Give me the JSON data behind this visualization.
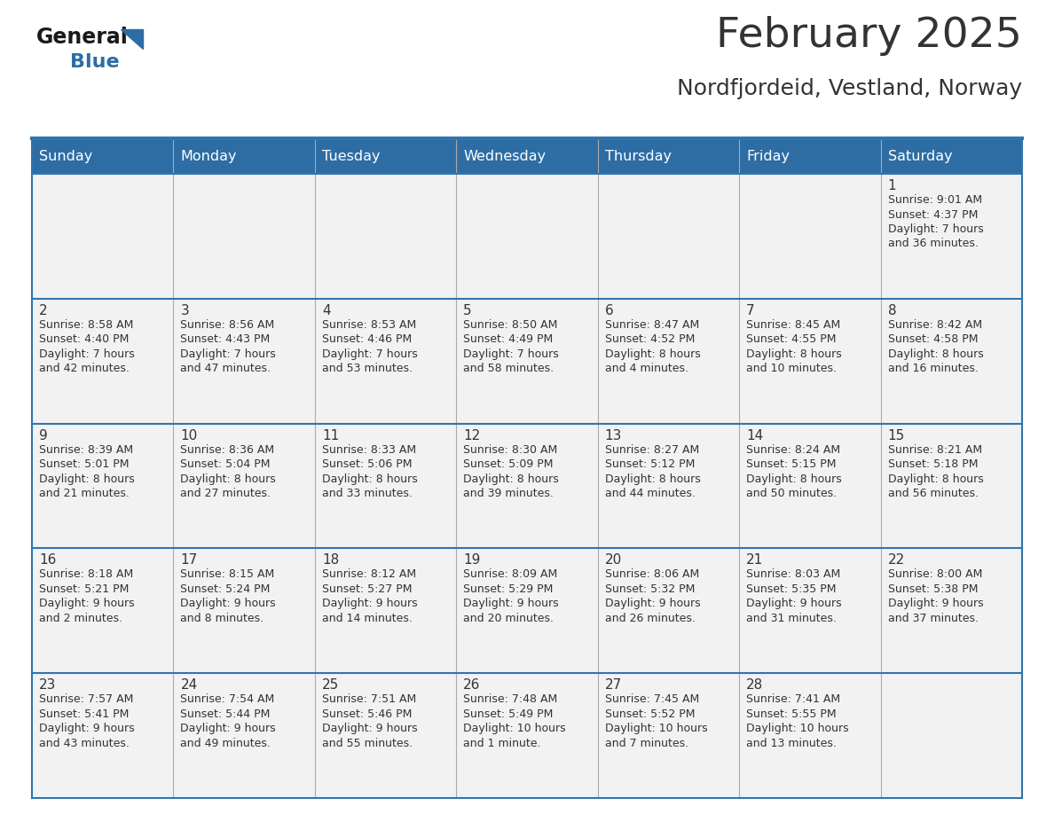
{
  "title": "February 2025",
  "subtitle": "Nordfjordeid, Vestland, Norway",
  "header_bg": "#2E6DA4",
  "header_text_color": "#FFFFFF",
  "cell_bg_light": "#F2F2F2",
  "cell_bg_white": "#FFFFFF",
  "border_color": "#2E75B0",
  "divider_color": "#AAAAAA",
  "text_color": "#333333",
  "days_of_week": [
    "Sunday",
    "Monday",
    "Tuesday",
    "Wednesday",
    "Thursday",
    "Friday",
    "Saturday"
  ],
  "weeks": [
    [
      {
        "day": "",
        "info": ""
      },
      {
        "day": "",
        "info": ""
      },
      {
        "day": "",
        "info": ""
      },
      {
        "day": "",
        "info": ""
      },
      {
        "day": "",
        "info": ""
      },
      {
        "day": "",
        "info": ""
      },
      {
        "day": "1",
        "info": "Sunrise: 9:01 AM\nSunset: 4:37 PM\nDaylight: 7 hours\nand 36 minutes."
      }
    ],
    [
      {
        "day": "2",
        "info": "Sunrise: 8:58 AM\nSunset: 4:40 PM\nDaylight: 7 hours\nand 42 minutes."
      },
      {
        "day": "3",
        "info": "Sunrise: 8:56 AM\nSunset: 4:43 PM\nDaylight: 7 hours\nand 47 minutes."
      },
      {
        "day": "4",
        "info": "Sunrise: 8:53 AM\nSunset: 4:46 PM\nDaylight: 7 hours\nand 53 minutes."
      },
      {
        "day": "5",
        "info": "Sunrise: 8:50 AM\nSunset: 4:49 PM\nDaylight: 7 hours\nand 58 minutes."
      },
      {
        "day": "6",
        "info": "Sunrise: 8:47 AM\nSunset: 4:52 PM\nDaylight: 8 hours\nand 4 minutes."
      },
      {
        "day": "7",
        "info": "Sunrise: 8:45 AM\nSunset: 4:55 PM\nDaylight: 8 hours\nand 10 minutes."
      },
      {
        "day": "8",
        "info": "Sunrise: 8:42 AM\nSunset: 4:58 PM\nDaylight: 8 hours\nand 16 minutes."
      }
    ],
    [
      {
        "day": "9",
        "info": "Sunrise: 8:39 AM\nSunset: 5:01 PM\nDaylight: 8 hours\nand 21 minutes."
      },
      {
        "day": "10",
        "info": "Sunrise: 8:36 AM\nSunset: 5:04 PM\nDaylight: 8 hours\nand 27 minutes."
      },
      {
        "day": "11",
        "info": "Sunrise: 8:33 AM\nSunset: 5:06 PM\nDaylight: 8 hours\nand 33 minutes."
      },
      {
        "day": "12",
        "info": "Sunrise: 8:30 AM\nSunset: 5:09 PM\nDaylight: 8 hours\nand 39 minutes."
      },
      {
        "day": "13",
        "info": "Sunrise: 8:27 AM\nSunset: 5:12 PM\nDaylight: 8 hours\nand 44 minutes."
      },
      {
        "day": "14",
        "info": "Sunrise: 8:24 AM\nSunset: 5:15 PM\nDaylight: 8 hours\nand 50 minutes."
      },
      {
        "day": "15",
        "info": "Sunrise: 8:21 AM\nSunset: 5:18 PM\nDaylight: 8 hours\nand 56 minutes."
      }
    ],
    [
      {
        "day": "16",
        "info": "Sunrise: 8:18 AM\nSunset: 5:21 PM\nDaylight: 9 hours\nand 2 minutes."
      },
      {
        "day": "17",
        "info": "Sunrise: 8:15 AM\nSunset: 5:24 PM\nDaylight: 9 hours\nand 8 minutes."
      },
      {
        "day": "18",
        "info": "Sunrise: 8:12 AM\nSunset: 5:27 PM\nDaylight: 9 hours\nand 14 minutes."
      },
      {
        "day": "19",
        "info": "Sunrise: 8:09 AM\nSunset: 5:29 PM\nDaylight: 9 hours\nand 20 minutes."
      },
      {
        "day": "20",
        "info": "Sunrise: 8:06 AM\nSunset: 5:32 PM\nDaylight: 9 hours\nand 26 minutes."
      },
      {
        "day": "21",
        "info": "Sunrise: 8:03 AM\nSunset: 5:35 PM\nDaylight: 9 hours\nand 31 minutes."
      },
      {
        "day": "22",
        "info": "Sunrise: 8:00 AM\nSunset: 5:38 PM\nDaylight: 9 hours\nand 37 minutes."
      }
    ],
    [
      {
        "day": "23",
        "info": "Sunrise: 7:57 AM\nSunset: 5:41 PM\nDaylight: 9 hours\nand 43 minutes."
      },
      {
        "day": "24",
        "info": "Sunrise: 7:54 AM\nSunset: 5:44 PM\nDaylight: 9 hours\nand 49 minutes."
      },
      {
        "day": "25",
        "info": "Sunrise: 7:51 AM\nSunset: 5:46 PM\nDaylight: 9 hours\nand 55 minutes."
      },
      {
        "day": "26",
        "info": "Sunrise: 7:48 AM\nSunset: 5:49 PM\nDaylight: 10 hours\nand 1 minute."
      },
      {
        "day": "27",
        "info": "Sunrise: 7:45 AM\nSunset: 5:52 PM\nDaylight: 10 hours\nand 7 minutes."
      },
      {
        "day": "28",
        "info": "Sunrise: 7:41 AM\nSunset: 5:55 PM\nDaylight: 10 hours\nand 13 minutes."
      },
      {
        "day": "",
        "info": ""
      }
    ]
  ],
  "logo_general_color": "#1a1a1a",
  "logo_blue_color": "#2E6DA4",
  "fig_width": 11.88,
  "fig_height": 9.18
}
